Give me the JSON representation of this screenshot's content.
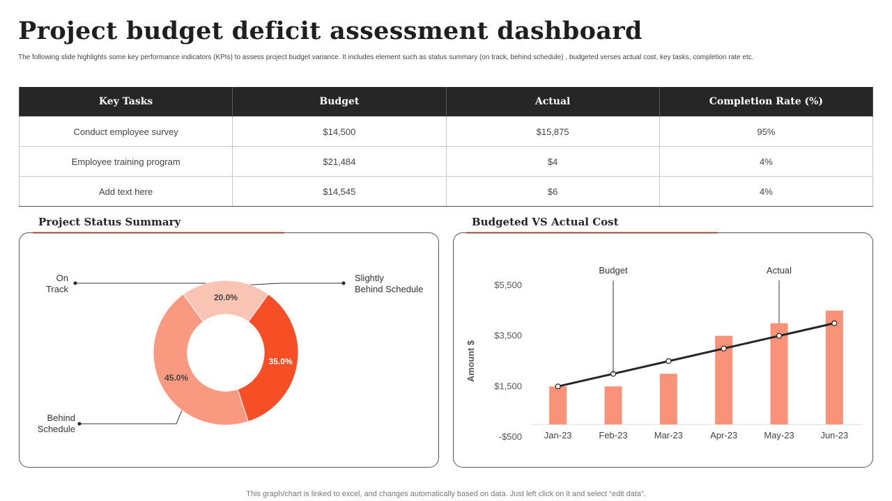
{
  "header": {
    "title": "Project budget deficit assessment dashboard",
    "subtitle": "The following slide highlights some key performance indicators (KPIs) to assess project budget variance. It includes element such as status summary (on track, behind schedule) , budgeted verses actual cost, key tasks, completion rate etc."
  },
  "table": {
    "headers": [
      "Key Tasks",
      "Budget",
      "Actual",
      "Completion Rate (%)"
    ],
    "rows": [
      [
        "Conduct employee survey",
        "$14,500",
        "$15,875",
        "95%"
      ],
      [
        "Employee training program",
        "$21,484",
        "$4",
        "4%"
      ],
      [
        "Add text here",
        "$14,545",
        "$6",
        "4%"
      ]
    ]
  },
  "status_panel": {
    "title": "Project Status Summary"
  },
  "cost_panel": {
    "title": "Budgeted VS Actual Cost"
  },
  "footer": {
    "note": "This graph/chart is linked to excel, and changes automatically based on data. Just left click on it and select “edit data”."
  },
  "colors": {
    "accent": "#f4a08a",
    "on_track": "#fac4b4",
    "slightly_behind": "#f64f26",
    "behind": "#f99a80",
    "bar": "#f8937a",
    "line": "#262626"
  },
  "chart_data": [
    {
      "type": "pie",
      "title": "Project Status Summary",
      "labels": [
        "On Track",
        "Slightly Behind Schedule",
        "Behind Schedule"
      ],
      "label_lines": [
        [
          "On",
          "Track"
        ],
        [
          "Slightly",
          "Behind Schedule"
        ],
        [
          "Behind",
          "Schedule"
        ]
      ],
      "values": [
        20.0,
        35.0,
        45.0
      ],
      "value_labels": [
        "20.0%",
        "35.0%",
        "45.0%"
      ],
      "hole": 0.53
    },
    {
      "type": "bar",
      "title": "Budgeted VS Actual Cost",
      "ylabel": "Amount $",
      "categories": [
        "Jan-23",
        "Feb-23",
        "Mar-23",
        "Apr-23",
        "May-23",
        "Jun-23"
      ],
      "ylim": [
        -500,
        5500
      ],
      "y_ticks": [
        5500,
        3500,
        1500,
        -500
      ],
      "y_tick_labels": [
        "$5,500",
        "$3,500",
        "$1,500",
        "-$500"
      ],
      "series": [
        {
          "name": "Actual",
          "kind": "bar",
          "values": [
            1500,
            1500,
            2000,
            3500,
            4000,
            4500
          ]
        },
        {
          "name": "Budget",
          "kind": "line",
          "values": [
            1500,
            2000,
            2500,
            3000,
            3500,
            4000
          ]
        }
      ],
      "callouts": [
        "Budget",
        "Actual"
      ]
    }
  ]
}
